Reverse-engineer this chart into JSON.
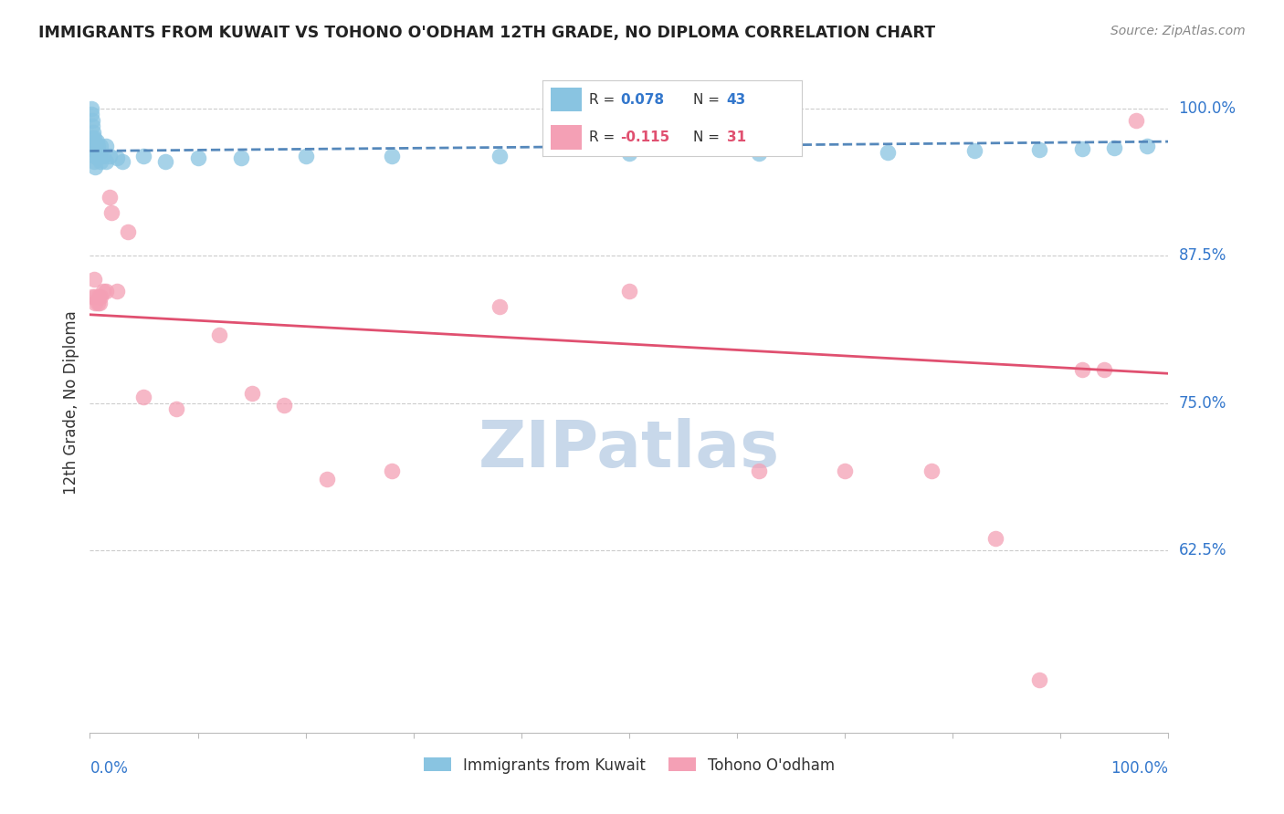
{
  "title": "IMMIGRANTS FROM KUWAIT VS TOHONO O'ODHAM 12TH GRADE, NO DIPLOMA CORRELATION CHART",
  "source": "Source: ZipAtlas.com",
  "ylabel": "12th Grade, No Diploma",
  "ytick_labels": [
    "100.0%",
    "87.5%",
    "75.0%",
    "62.5%"
  ],
  "ytick_values": [
    1.0,
    0.875,
    0.75,
    0.625
  ],
  "xlim": [
    0.0,
    1.0
  ],
  "ylim": [
    0.47,
    1.03
  ],
  "blue_color": "#89c4e1",
  "pink_color": "#f4a0b5",
  "blue_line_color": "#5588bb",
  "pink_line_color": "#e05070",
  "blue_r": 0.078,
  "blue_n": 43,
  "pink_r": -0.115,
  "pink_n": 31,
  "watermark": "ZIPatlas",
  "watermark_color": "#c8d8ea",
  "blue_scatter_x": [
    0.001,
    0.001,
    0.002,
    0.002,
    0.002,
    0.003,
    0.003,
    0.003,
    0.004,
    0.004,
    0.004,
    0.005,
    0.005,
    0.005,
    0.006,
    0.006,
    0.007,
    0.007,
    0.008,
    0.009,
    0.01,
    0.01,
    0.012,
    0.015,
    0.015,
    0.018,
    0.025,
    0.03,
    0.05,
    0.07,
    0.1,
    0.14,
    0.2,
    0.28,
    0.38,
    0.5,
    0.62,
    0.74,
    0.82,
    0.88,
    0.92,
    0.95,
    0.98
  ],
  "blue_scatter_y": [
    1.0,
    0.995,
    0.99,
    0.985,
    0.975,
    0.98,
    0.97,
    0.965,
    0.975,
    0.965,
    0.955,
    0.97,
    0.96,
    0.95,
    0.972,
    0.963,
    0.968,
    0.958,
    0.963,
    0.96,
    0.968,
    0.955,
    0.96,
    0.955,
    0.968,
    0.96,
    0.958,
    0.955,
    0.96,
    0.955,
    0.958,
    0.958,
    0.96,
    0.96,
    0.96,
    0.962,
    0.962,
    0.963,
    0.964,
    0.965,
    0.966,
    0.967,
    0.968
  ],
  "pink_scatter_x": [
    0.002,
    0.004,
    0.005,
    0.005,
    0.007,
    0.008,
    0.009,
    0.01,
    0.012,
    0.015,
    0.018,
    0.02,
    0.025,
    0.035,
    0.05,
    0.08,
    0.12,
    0.15,
    0.18,
    0.22,
    0.28,
    0.38,
    0.5,
    0.62,
    0.7,
    0.78,
    0.84,
    0.88,
    0.92,
    0.94,
    0.97
  ],
  "pink_scatter_y": [
    0.84,
    0.855,
    0.835,
    0.84,
    0.835,
    0.84,
    0.835,
    0.84,
    0.845,
    0.845,
    0.925,
    0.912,
    0.845,
    0.895,
    0.755,
    0.745,
    0.808,
    0.758,
    0.748,
    0.685,
    0.692,
    0.832,
    0.845,
    0.692,
    0.692,
    0.692,
    0.635,
    0.515,
    0.778,
    0.778,
    0.99
  ]
}
